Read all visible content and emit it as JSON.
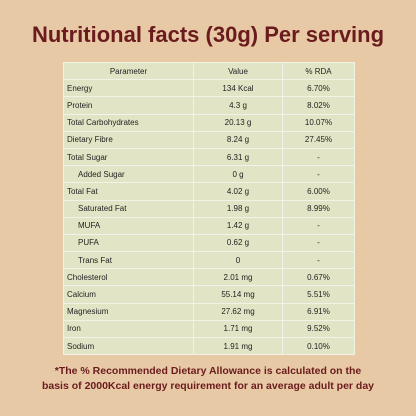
{
  "header": {
    "title": "Nutritional facts (30g) Per serving"
  },
  "table": {
    "columns": [
      "Parameter",
      "Value",
      "% RDA"
    ],
    "rows": [
      [
        "Energy",
        "134 Kcal",
        "6.70%"
      ],
      [
        "Protein",
        "4.3 g",
        "8.02%"
      ],
      [
        "Total Carbohydrates",
        "20.13 g",
        "10.07%"
      ],
      [
        "Dietary Fibre",
        "8.24 g",
        "27.45%"
      ],
      [
        "Total Sugar",
        "6.31 g",
        "-"
      ],
      [
        "Added Sugar",
        "0 g",
        "-"
      ],
      [
        "Total Fat",
        "4.02 g",
        "6.00%"
      ],
      [
        "Saturated Fat",
        "1.98 g",
        "8.99%"
      ],
      [
        "MUFA",
        "1.42 g",
        "-"
      ],
      [
        "PUFA",
        "0.62 g",
        "-"
      ],
      [
        "Trans Fat",
        "0",
        "-"
      ],
      [
        "Cholesterol",
        "2.01 mg",
        "0.67%"
      ],
      [
        "Calcium",
        "55.14 mg",
        "5.51%"
      ],
      [
        "Magnesium",
        "27.62 mg",
        "6.91%"
      ],
      [
        "Iron",
        "1.71 mg",
        "9.52%"
      ],
      [
        "Sodium",
        "1.91 mg",
        "0.10%"
      ]
    ]
  },
  "footnote": "*The % Recommended Dietary Allowance is calculated on the basis of 2000Kcal energy requirement for an average adult per day"
}
